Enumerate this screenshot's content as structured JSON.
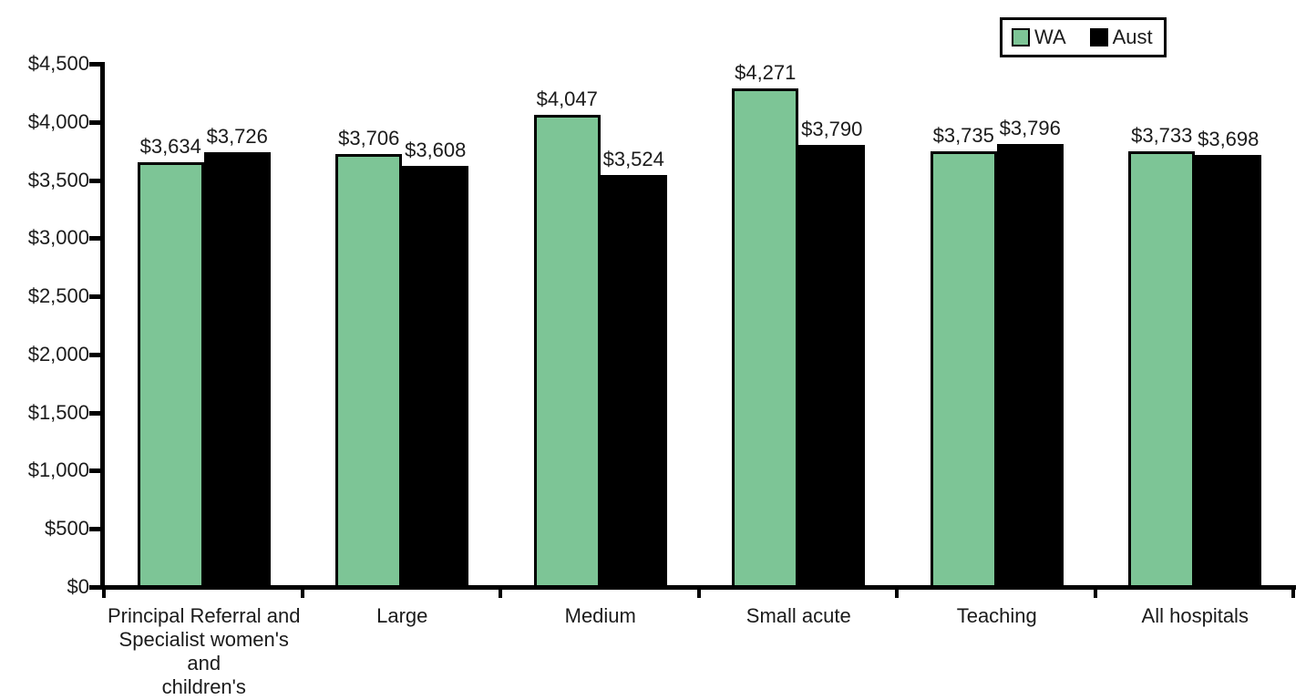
{
  "chart_data": {
    "type": "bar",
    "title": "",
    "xlabel": "",
    "ylabel": "",
    "ylim": [
      0,
      4500
    ],
    "y_tick_step": 500,
    "y_tick_labels": [
      "$0",
      "$500",
      "$1,000",
      "$1,500",
      "$2,000",
      "$2,500",
      "$3,000",
      "$3,500",
      "$4,000",
      "$4,500"
    ],
    "grid": false,
    "legend_position": "top-right",
    "categories": [
      "Principal Referral and\nSpecialist women's and\nchildren's",
      "Large",
      "Medium",
      "Small acute",
      "Teaching",
      "All hospitals"
    ],
    "series": [
      {
        "name": "WA",
        "color": "#7DC596",
        "values": [
          3634,
          3706,
          4047,
          4271,
          3735,
          3733
        ],
        "labels": [
          "$3,634",
          "$3,706",
          "$4,047",
          "$4,271",
          "$3,735",
          "$3,733"
        ]
      },
      {
        "name": "Aust",
        "color": "#000000",
        "values": [
          3726,
          3608,
          3524,
          3790,
          3796,
          3698
        ],
        "labels": [
          "$3,726",
          "$3,608",
          "$3,524",
          "$3,790",
          "$3,796",
          "$3,698"
        ]
      }
    ],
    "colors": {
      "wa_bar": "#7DC596",
      "aust_bar": "#000000",
      "axis": "#000000",
      "text": "#1b1b1b",
      "background": "#ffffff"
    }
  }
}
